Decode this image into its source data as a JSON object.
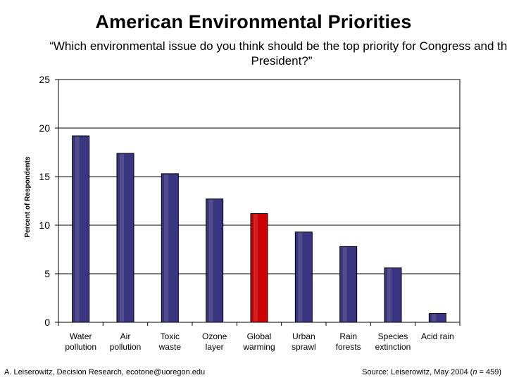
{
  "chart_data": {
    "type": "bar",
    "title": "American Environmental Priorities",
    "subtitle": "“Which environmental issue do you think should be the top priority for Congress and the President?”",
    "xlabel": "",
    "ylabel": "Percent of Respondents",
    "ylim": [
      0,
      25
    ],
    "yticks": [
      0,
      5,
      10,
      15,
      20,
      25
    ],
    "grid": true,
    "categories": [
      [
        "Water",
        "pollution"
      ],
      [
        "Air",
        "pollution"
      ],
      [
        "Toxic",
        "waste"
      ],
      [
        "Ozone",
        "layer"
      ],
      [
        "Global",
        "warming"
      ],
      [
        "Urban",
        "sprawl"
      ],
      [
        "Rain",
        "forests"
      ],
      [
        "Species",
        "extinction"
      ],
      [
        "Acid rain"
      ]
    ],
    "values": [
      19.2,
      17.4,
      15.3,
      12.7,
      11.2,
      9.3,
      7.8,
      5.6,
      0.9
    ],
    "colors": {
      "bar": "#3a3580",
      "highlight": "#cc0000",
      "grid": "#000000"
    },
    "highlight_index": 4
  },
  "footer": {
    "left": "A. Leiserowitz, Decision Research, ecotone@uoregon.edu",
    "right_prefix": "Source: Leiserowitz, May 2004 (",
    "right_n": "n",
    "right_suffix": " = 459)"
  }
}
